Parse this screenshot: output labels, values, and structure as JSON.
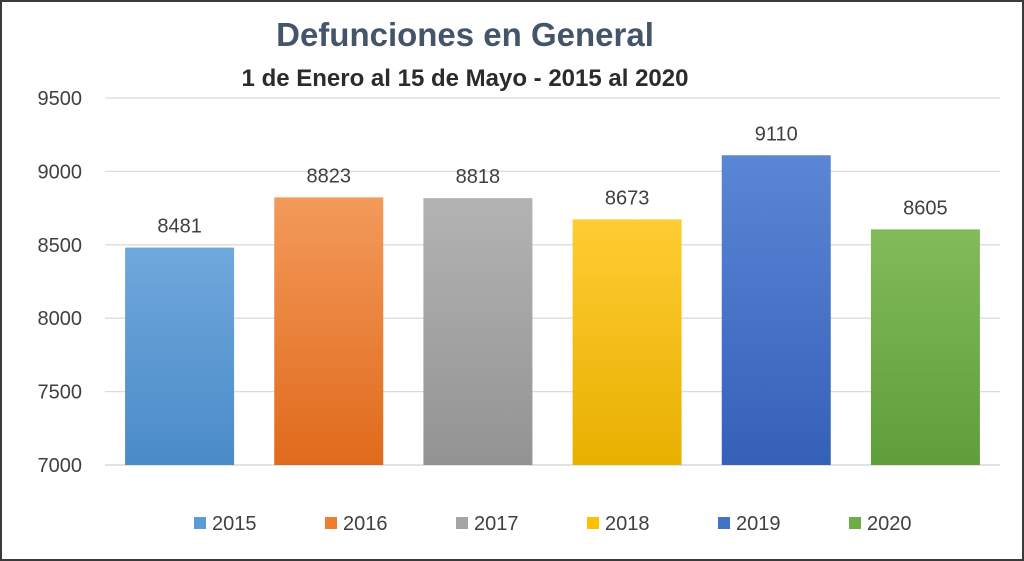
{
  "chart_data": {
    "type": "bar",
    "title": "Defunciones en General",
    "subtitle": "1 de Enero al 15 de Mayo - 2015 al 2020",
    "categories": [
      "2015",
      "2016",
      "2017",
      "2018",
      "2019",
      "2020"
    ],
    "values": [
      8481,
      8823,
      8818,
      8673,
      9110,
      8605
    ],
    "ylim": [
      7000,
      9500
    ],
    "yticks": [
      7000,
      7500,
      8000,
      8500,
      9000,
      9500
    ],
    "grid": true,
    "legend_position": "bottom",
    "colors": [
      "#5b9bd5",
      "#ed7d31",
      "#a5a5a5",
      "#ffc000",
      "#4472c4",
      "#70ad47"
    ],
    "colors_light": [
      "#6fa8dc",
      "#f39a5a",
      "#b3b3b3",
      "#ffcc33",
      "#5b86d6",
      "#82bb5a"
    ],
    "colors_dark": [
      "#4a8bc8",
      "#e06a1c",
      "#939393",
      "#e8b000",
      "#3560b8",
      "#5f9e3a"
    ]
  }
}
